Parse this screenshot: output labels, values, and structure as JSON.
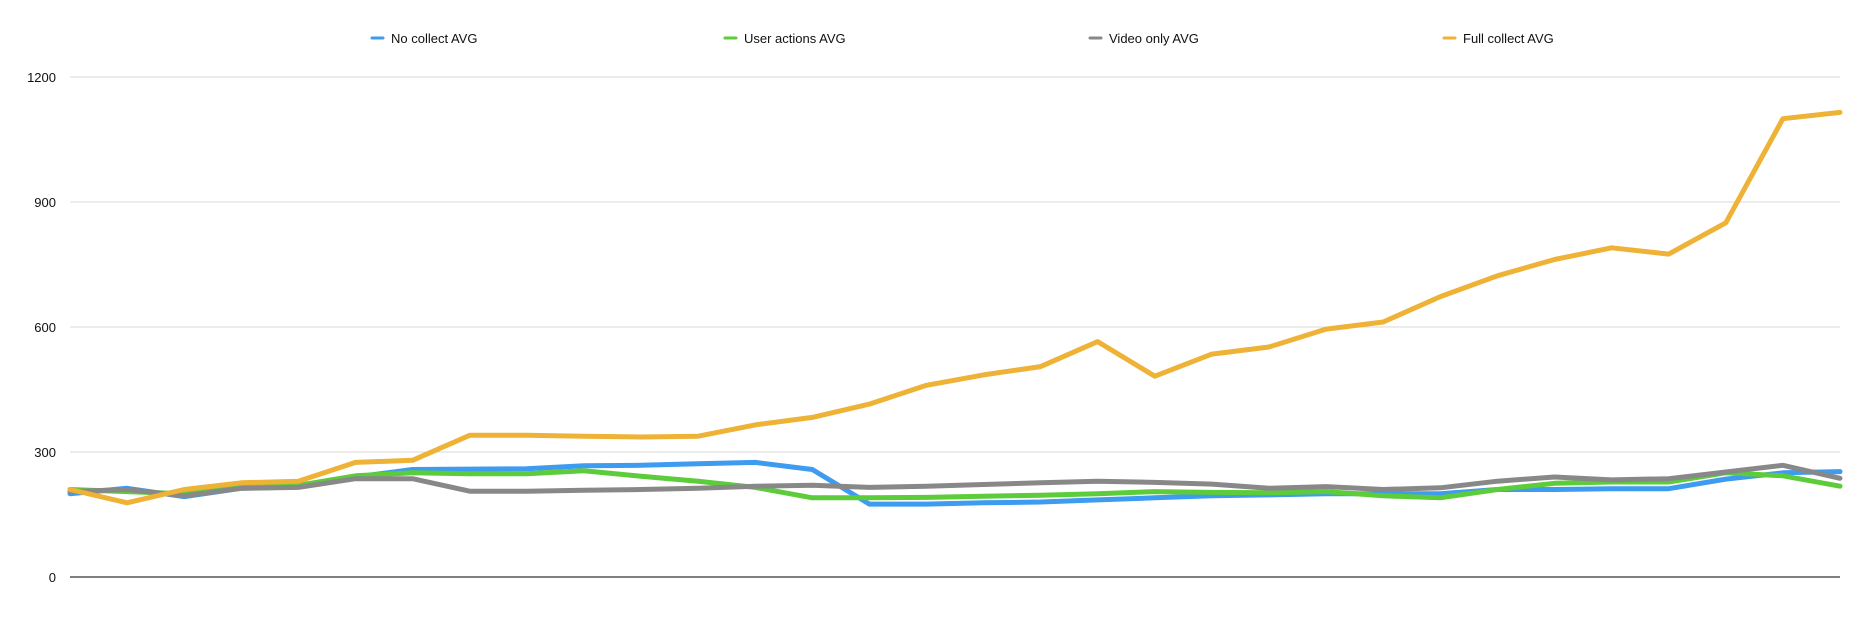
{
  "chart_data": {
    "type": "line",
    "title": "",
    "xlabel": "",
    "ylabel": "",
    "ylim": [
      0,
      1200
    ],
    "yticks": [
      0,
      300,
      600,
      900,
      1200
    ],
    "grid": true,
    "legend_position": "top",
    "x": [
      1,
      2,
      3,
      4,
      5,
      6,
      7,
      8,
      9,
      10,
      11,
      12,
      13,
      14,
      15,
      16,
      17,
      18,
      19,
      20,
      21,
      22,
      23,
      24,
      25,
      26,
      27,
      28,
      29,
      30,
      31,
      32
    ],
    "series": [
      {
        "name": "No collect AVG",
        "color": "#3d9bf0",
        "values": [
          200,
          213,
          193,
          213,
          216,
          240,
          258,
          259,
          260,
          267,
          268,
          272,
          275,
          258,
          175,
          175,
          178,
          180,
          185,
          190,
          195,
          197,
          200,
          200,
          200,
          210,
          210,
          212,
          212,
          235,
          250,
          253
        ]
      },
      {
        "name": "User actions AVG",
        "color": "#5ccc3a",
        "values": [
          210,
          205,
          200,
          218,
          220,
          243,
          250,
          248,
          248,
          255,
          242,
          230,
          215,
          190,
          190,
          191,
          194,
          196,
          200,
          205,
          203,
          202,
          205,
          195,
          190,
          210,
          225,
          228,
          228,
          250,
          243,
          218
        ]
      },
      {
        "name": "Video only AVG",
        "color": "#888888",
        "values": [
          205,
          210,
          195,
          213,
          215,
          236,
          236,
          206,
          206,
          208,
          210,
          213,
          218,
          220,
          215,
          218,
          222,
          226,
          230,
          227,
          223,
          213,
          217,
          210,
          214,
          230,
          240,
          233,
          236,
          252,
          268,
          237
        ]
      },
      {
        "name": "Full collect AVG",
        "color": "#eeb236",
        "values": [
          210,
          178,
          210,
          226,
          230,
          275,
          280,
          340,
          340,
          338,
          336,
          338,
          365,
          383,
          415,
          460,
          485,
          505,
          565,
          482,
          535,
          552,
          595,
          612,
          673,
          723,
          762,
          790,
          775,
          850,
          1100,
          1115
        ]
      }
    ]
  }
}
